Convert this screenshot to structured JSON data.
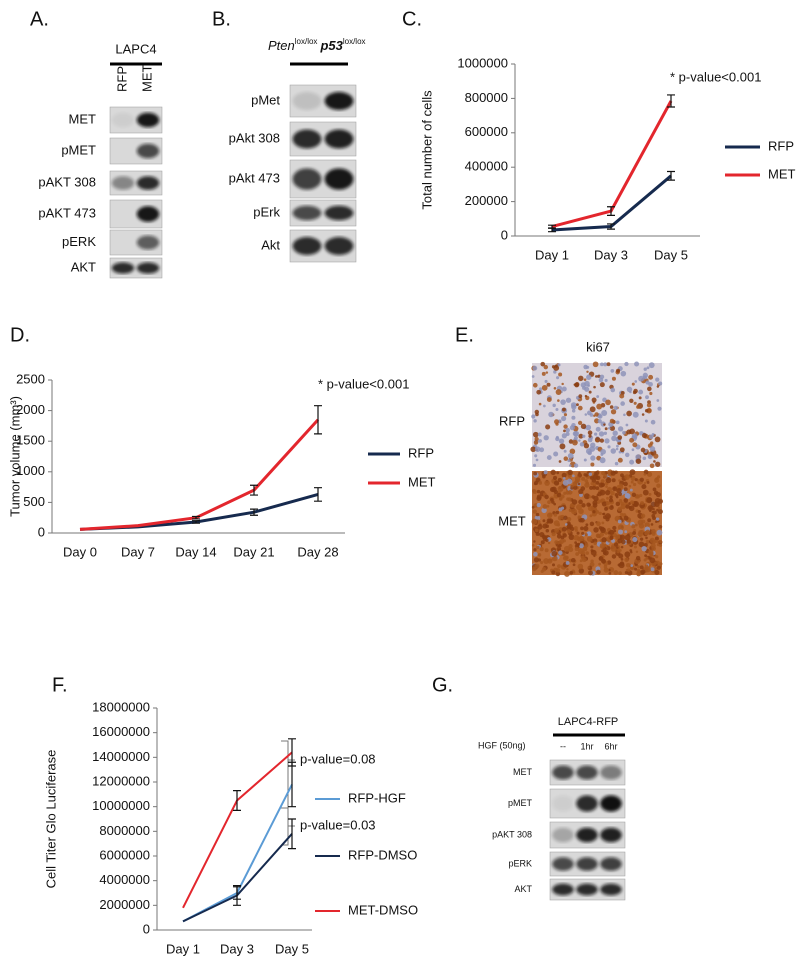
{
  "panels": {
    "A": {
      "label": "A.",
      "cell_line": "LAPC4",
      "lanes": [
        "RFP",
        "MET"
      ],
      "rows": [
        "MET",
        "pMET",
        "pAKT 308",
        "pAKT 473",
        "pERK",
        "AKT"
      ]
    },
    "B": {
      "label": "B.",
      "gene1": "Pten",
      "sup1": "lox/lox",
      "gene2": "p53",
      "sup2": "lox/lox",
      "rows": [
        "pMet",
        "pAkt 308",
        "pAkt 473",
        "pErk",
        "Akt"
      ]
    },
    "E": {
      "label": "E.",
      "stain": "ki67",
      "rows": [
        "RFP",
        "MET"
      ]
    },
    "G": {
      "label": "G.",
      "cell_line": "LAPC4-RFP",
      "treatment": "HGF (50ng)",
      "lanes": [
        "--",
        "1hr",
        "6hr"
      ],
      "rows": [
        "MET",
        "pMET",
        "pAKT 308",
        "pERK",
        "AKT"
      ]
    }
  },
  "chart_data": [
    {
      "type": "line",
      "label": "C.",
      "annotation": "* p-value<0.001",
      "y_label": "Total number of cells",
      "categories": [
        "Day 1",
        "Day 3",
        "Day 5"
      ],
      "ylim": [
        0,
        1000000
      ],
      "yticks": [
        0,
        200000,
        400000,
        600000,
        800000,
        1000000
      ],
      "series": [
        {
          "name": "RFP",
          "color": "#162a4e",
          "values": [
            35000,
            55000,
            350000
          ],
          "errors": [
            10000,
            15000,
            25000
          ]
        },
        {
          "name": "MET",
          "color": "#e3262d",
          "values": [
            55000,
            145000,
            785000
          ],
          "errors": [
            8000,
            25000,
            35000
          ]
        }
      ]
    },
    {
      "type": "line",
      "label": "D.",
      "annotation": "* p-value<0.001",
      "y_label": "Tumor volume (mm³)",
      "categories": [
        "Day 0",
        "Day 7",
        "Day 14",
        "Day 21",
        "Day 28"
      ],
      "ylim": [
        0,
        2500
      ],
      "yticks": [
        0,
        500,
        1000,
        1500,
        2000,
        2500
      ],
      "series": [
        {
          "name": "RFP",
          "color": "#162a4e",
          "values": [
            60,
            100,
            180,
            340,
            630
          ],
          "errors": [
            null,
            null,
            20,
            50,
            110
          ]
        },
        {
          "name": "MET",
          "color": "#e3262d",
          "values": [
            60,
            120,
            250,
            700,
            1850
          ],
          "errors": [
            null,
            null,
            20,
            80,
            230
          ]
        }
      ]
    },
    {
      "type": "line",
      "label": "F.",
      "y_label": "Cell Titer Glo Luciferase",
      "annotations": [
        "p-value=0.08",
        "p-value=0.03"
      ],
      "categories": [
        "Day 1",
        "Day 3",
        "Day 5"
      ],
      "ylim": [
        0,
        18000000
      ],
      "yticks": [
        0,
        2000000,
        4000000,
        6000000,
        8000000,
        10000000,
        12000000,
        14000000,
        16000000,
        18000000
      ],
      "series": [
        {
          "name": "RFP-HGF",
          "color": "#5b9bd5",
          "values": [
            700000,
            3000000,
            11800000
          ],
          "errors": [
            null,
            500000,
            1800000
          ]
        },
        {
          "name": "RFP-DMSO",
          "color": "#162a4e",
          "values": [
            700000,
            2800000,
            7800000
          ],
          "errors": [
            null,
            800000,
            1200000
          ]
        },
        {
          "name": "MET-DMSO",
          "color": "#e3262d",
          "values": [
            1800000,
            10500000,
            14400000
          ],
          "errors": [
            null,
            800000,
            1100000
          ]
        }
      ]
    }
  ]
}
